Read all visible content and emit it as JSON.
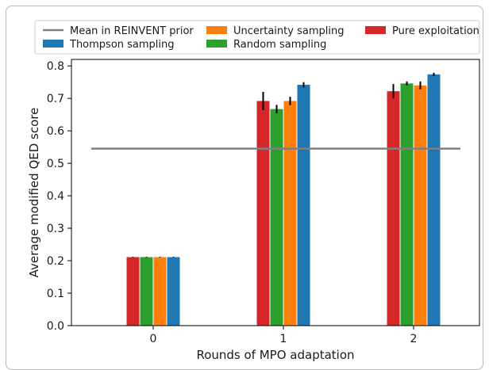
{
  "chart_data": {
    "type": "bar",
    "title": "",
    "xlabel": "Rounds of MPO adaptation",
    "ylabel": "Average modified QED score",
    "categories": [
      "0",
      "1",
      "2"
    ],
    "ylim": [
      0.0,
      0.8
    ],
    "yticks": [
      "0.0",
      "0.1",
      "0.2",
      "0.3",
      "0.4",
      "0.5",
      "0.6",
      "0.7",
      "0.8"
    ],
    "grid": false,
    "legend_position": "top",
    "reference_line": {
      "name": "Mean in REINVENT prior",
      "value": 0.545,
      "color": "#808080"
    },
    "series": [
      {
        "name": "Pure exploitation",
        "color": "#d62728",
        "values": [
          0.211,
          0.692,
          0.722
        ],
        "errors": [
          0.001,
          0.028,
          0.022
        ]
      },
      {
        "name": "Random sampling",
        "color": "#2ca02c",
        "values": [
          0.211,
          0.667,
          0.746
        ],
        "errors": [
          0.001,
          0.013,
          0.006
        ]
      },
      {
        "name": "Uncertainty sampling",
        "color": "#ff7f0e",
        "values": [
          0.211,
          0.692,
          0.74
        ],
        "errors": [
          0.001,
          0.013,
          0.012
        ]
      },
      {
        "name": "Thompson sampling",
        "color": "#1f77b4",
        "values": [
          0.211,
          0.742,
          0.774
        ],
        "errors": [
          0.001,
          0.008,
          0.005
        ]
      }
    ],
    "legend_order": [
      "Mean in REINVENT prior",
      "Thompson sampling",
      "Uncertainty sampling",
      "Random sampling",
      "Pure exploitation"
    ]
  }
}
